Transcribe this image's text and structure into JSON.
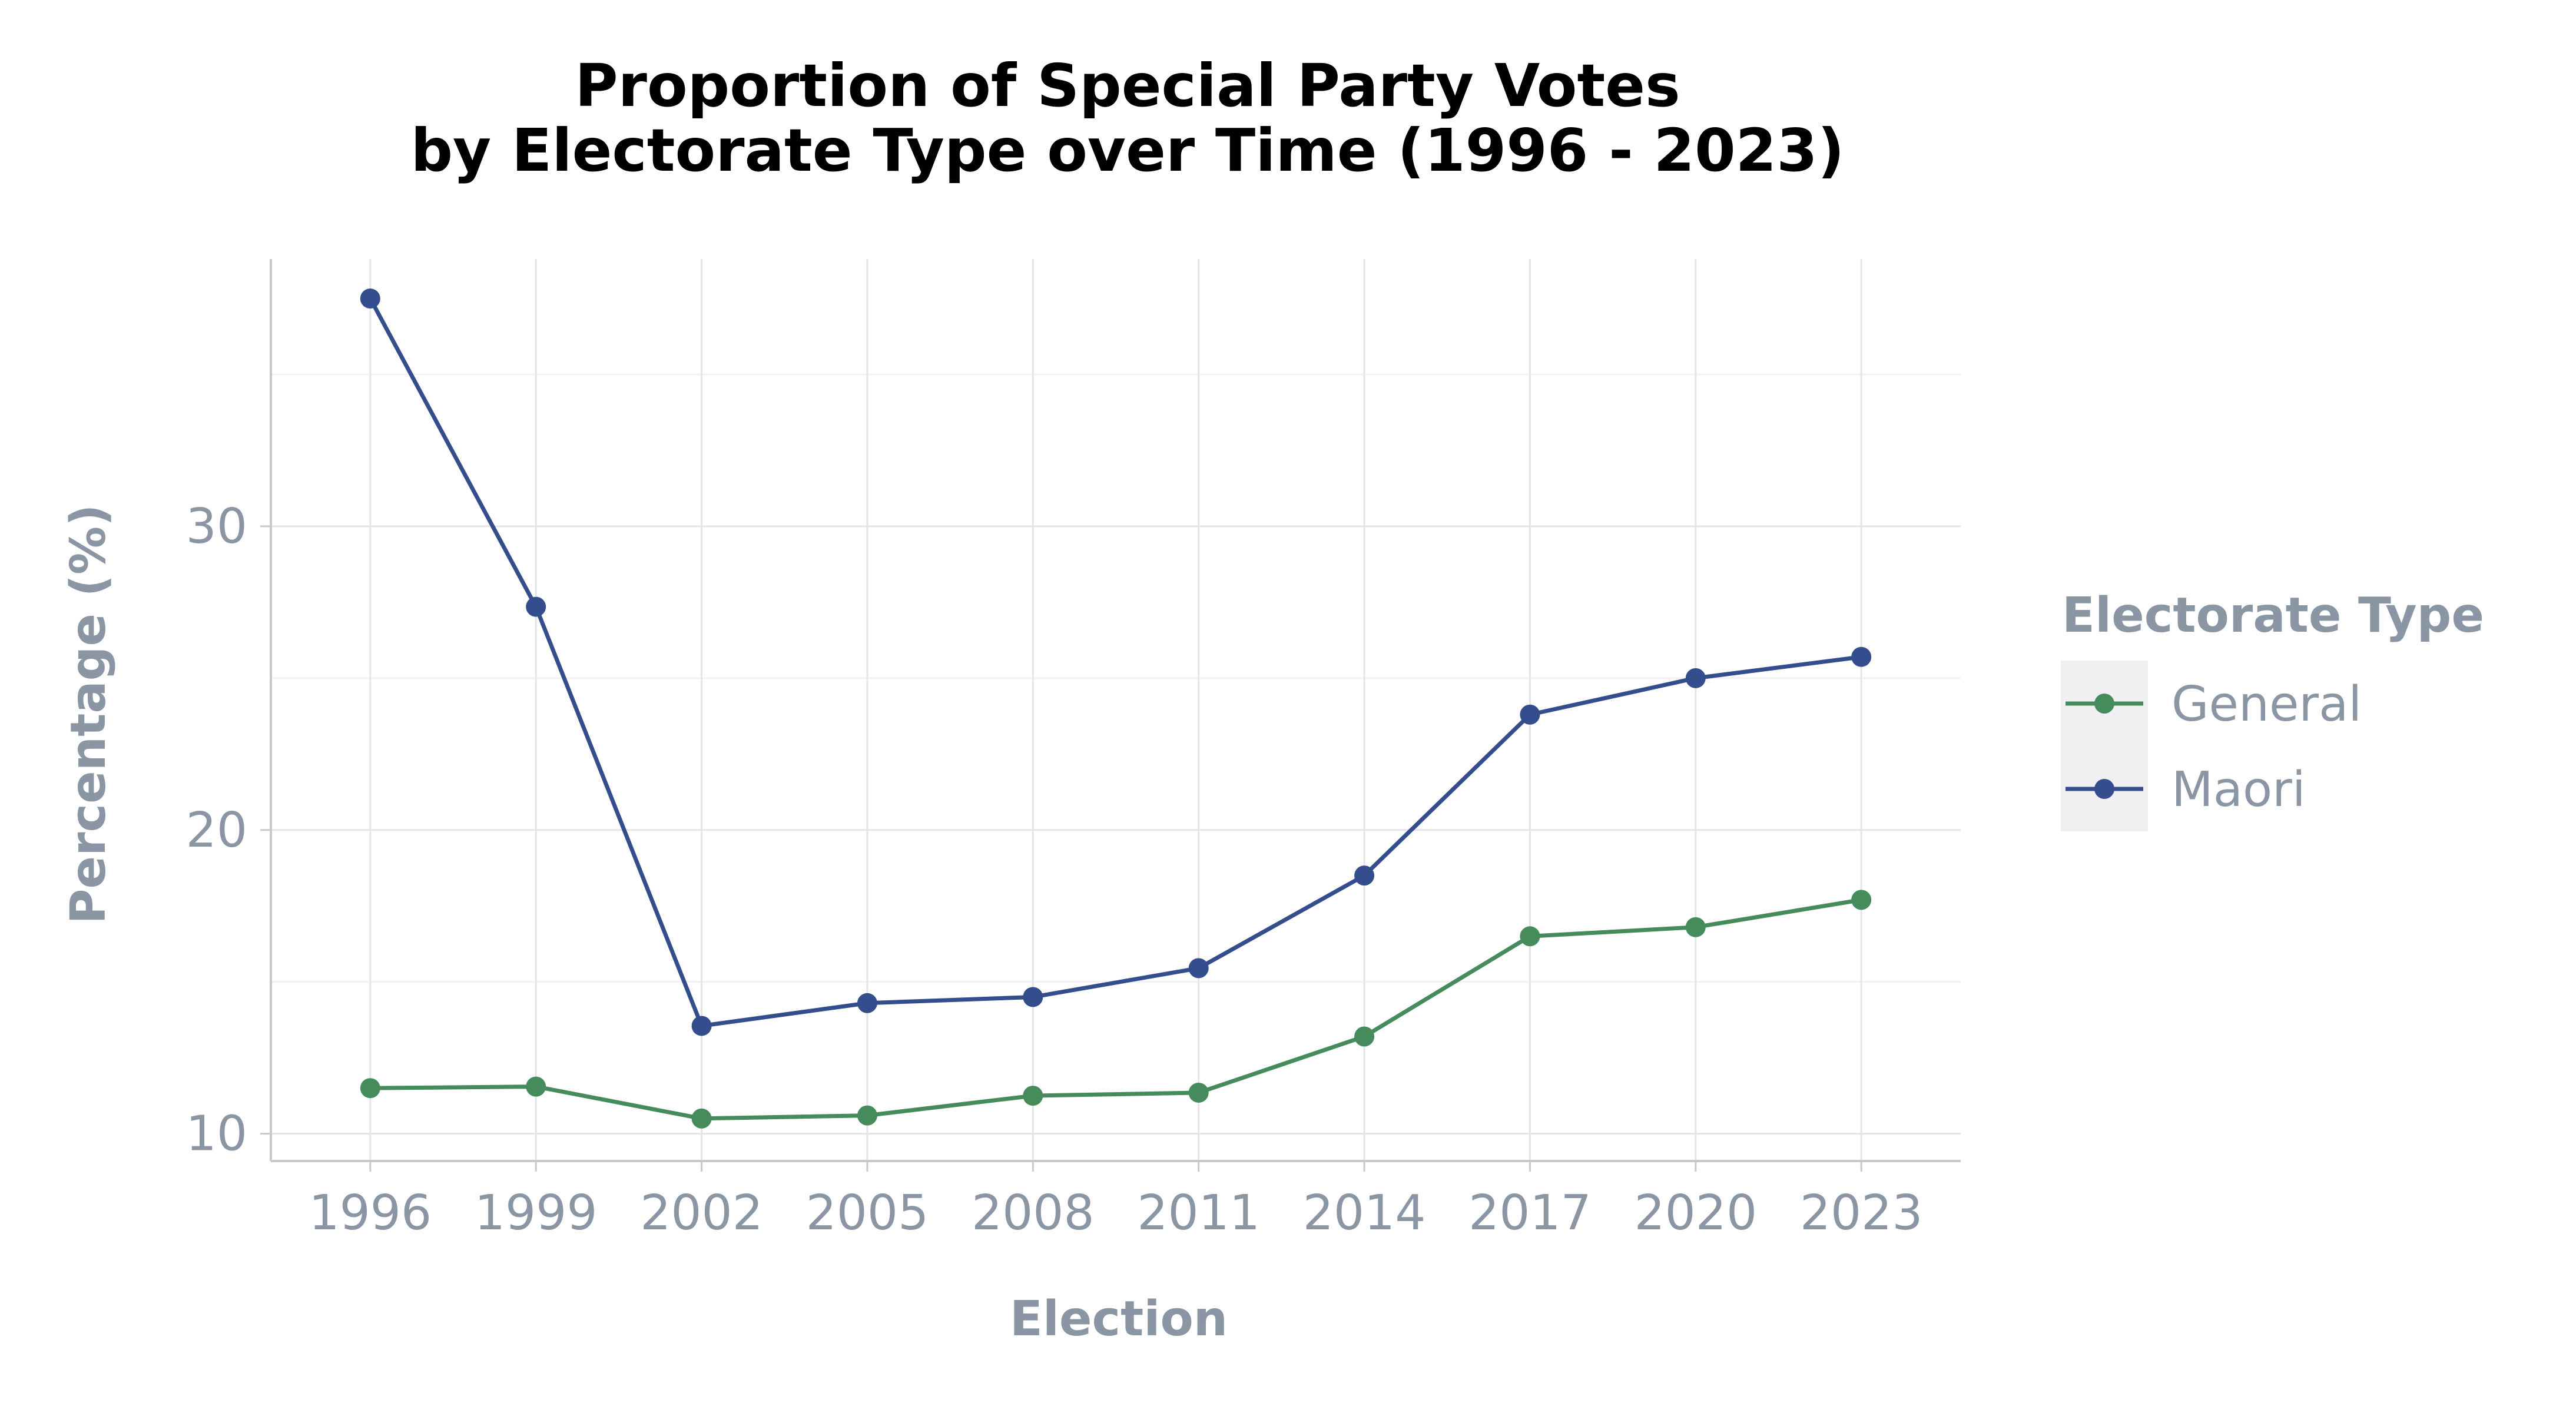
{
  "chart_data": {
    "type": "line",
    "title": [
      "Proportion of Special Party Votes",
      "by Electorate Type over Time (1996 - 2023)"
    ],
    "xlabel": "Election",
    "ylabel": "Percentage (%)",
    "x": [
      1996,
      1999,
      2002,
      2005,
      2008,
      2011,
      2014,
      2017,
      2020,
      2023
    ],
    "xlim": [
      1994.2,
      2024.8
    ],
    "ylim": [
      9.1,
      38.8
    ],
    "yticks": [
      10,
      20,
      30
    ],
    "grid": true,
    "legend": {
      "title": "Electorate Type",
      "position": "right"
    },
    "series": [
      {
        "name": "General",
        "color": "#458b5c",
        "values": [
          11.5,
          11.55,
          10.5,
          10.6,
          11.25,
          11.35,
          13.2,
          16.5,
          16.8,
          17.7
        ]
      },
      {
        "name": "Maori",
        "color": "#344d8c",
        "values": [
          37.5,
          27.35,
          13.55,
          14.3,
          14.5,
          15.45,
          18.5,
          23.8,
          25.0,
          25.7
        ]
      }
    ],
    "colors": {
      "axis_text": "#8a96a3",
      "grid": "#e3e5e8",
      "axis_line": "#c8c8c8",
      "legend_key_bg": "#f0f0f2"
    }
  }
}
